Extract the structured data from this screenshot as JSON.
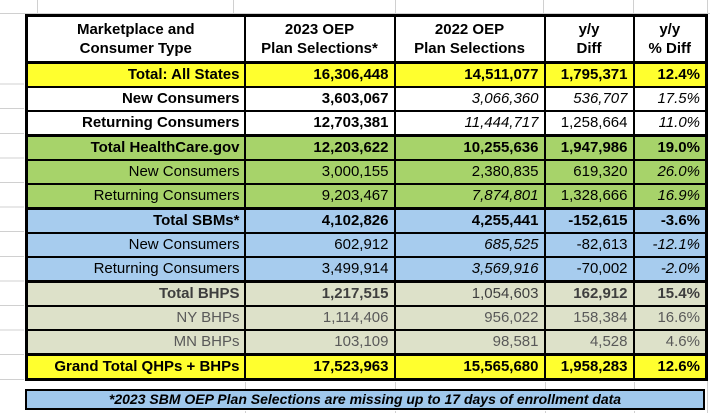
{
  "colors": {
    "section-yellow": "#FFFF2E",
    "section-green": "#A7D36A",
    "section-blue": "#A7CCEE",
    "section-olive": "#DDE1C9",
    "footnote-blue": "#A0C8EC",
    "table-border": "#000000",
    "gridline": "#D0D0D0",
    "text-gray": "#595959",
    "text-gray-dark": "#3E3E3E"
  },
  "table": {
    "columns": [
      {
        "line1": "Marketplace and",
        "line2": "Consumer Type"
      },
      {
        "line1": "2023 OEP",
        "line2": "Plan Selections*"
      },
      {
        "line1": "2022 OEP",
        "line2": "Plan Selections"
      },
      {
        "line1": "y/y",
        "line2": "Diff"
      },
      {
        "line1": "y/y",
        "line2": "% Diff"
      }
    ],
    "rows": [
      {
        "label": "Total: All States",
        "section": "yellow",
        "section_start": false,
        "label_bold": true,
        "values": [
          {
            "text": "16,306,448",
            "bold": true
          },
          {
            "text": "14,511,077",
            "bold": true
          },
          {
            "text": "1,795,371",
            "bold": true
          },
          {
            "text": "12.4%",
            "bold": true
          }
        ]
      },
      {
        "label": "New Consumers",
        "section": "white",
        "label_bold": true,
        "values": [
          {
            "text": "3,603,067",
            "bold": true
          },
          {
            "text": "3,066,360",
            "italic": true
          },
          {
            "text": "536,707",
            "italic": true
          },
          {
            "text": "17.5%",
            "italic": true
          }
        ]
      },
      {
        "label": "Returning Consumers",
        "section": "white",
        "label_bold": true,
        "values": [
          {
            "text": "12,703,381",
            "bold": true
          },
          {
            "text": "11,444,717",
            "italic": true
          },
          {
            "text": "1,258,664"
          },
          {
            "text": "11.0%",
            "italic": true
          }
        ]
      },
      {
        "label": "Total HealthCare.gov",
        "section": "green",
        "section_start": true,
        "label_bold": true,
        "values": [
          {
            "text": "12,203,622",
            "bold": true
          },
          {
            "text": "10,255,636",
            "bold": true
          },
          {
            "text": "1,947,986",
            "bold": true
          },
          {
            "text": "19.0%",
            "bold": true
          }
        ]
      },
      {
        "label": "New Consumers",
        "section": "green",
        "values": [
          {
            "text": "3,000,155"
          },
          {
            "text": "2,380,835"
          },
          {
            "text": "619,320"
          },
          {
            "text": "26.0%",
            "italic": true
          }
        ]
      },
      {
        "label": "Returning Consumers",
        "section": "green",
        "values": [
          {
            "text": "9,203,467"
          },
          {
            "text": "7,874,801",
            "italic": true
          },
          {
            "text": "1,328,666"
          },
          {
            "text": "16.9%",
            "italic": true
          }
        ]
      },
      {
        "label": "Total SBMs*",
        "section": "blue",
        "section_start": true,
        "label_bold": true,
        "values": [
          {
            "text": "4,102,826",
            "bold": true
          },
          {
            "text": "4,255,441",
            "bold": true
          },
          {
            "text": "-152,615",
            "bold": true
          },
          {
            "text": "-3.6%",
            "bold": true
          }
        ]
      },
      {
        "label": "New Consumers",
        "section": "blue",
        "values": [
          {
            "text": "602,912"
          },
          {
            "text": "685,525",
            "italic": true
          },
          {
            "text": "-82,613"
          },
          {
            "text": "-12.1%",
            "italic": true
          }
        ]
      },
      {
        "label": "Returning Consumers",
        "section": "blue",
        "values": [
          {
            "text": "3,499,914"
          },
          {
            "text": "3,569,916",
            "italic": true
          },
          {
            "text": "-70,002"
          },
          {
            "text": "-2.0%",
            "italic": true
          }
        ]
      },
      {
        "label": "Total BHPS",
        "section": "olive",
        "section_start": true,
        "label_bold": true,
        "tone": "gray-dark",
        "values": [
          {
            "text": "1,217,515",
            "bold": true
          },
          {
            "text": "1,054,603"
          },
          {
            "text": "162,912",
            "bold": true
          },
          {
            "text": "15.4%",
            "bold": true
          }
        ]
      },
      {
        "label": "NY BHPs",
        "section": "olive",
        "tone": "gray",
        "values": [
          {
            "text": "1,114,406"
          },
          {
            "text": "956,022"
          },
          {
            "text": "158,384"
          },
          {
            "text": "16.6%"
          }
        ]
      },
      {
        "label": "MN BHPs",
        "section": "olive",
        "tone": "gray",
        "values": [
          {
            "text": "103,109"
          },
          {
            "text": "98,581"
          },
          {
            "text": "4,528"
          },
          {
            "text": "4.6%"
          }
        ]
      },
      {
        "label": "Grand Total QHPs + BHPs",
        "section": "yellow",
        "section_start": true,
        "label_bold": true,
        "values": [
          {
            "text": "17,523,963",
            "bold": true
          },
          {
            "text": "15,565,680",
            "bold": true
          },
          {
            "text": "1,958,283",
            "bold": true
          },
          {
            "text": "12.6%",
            "bold": true
          }
        ]
      }
    ]
  },
  "footnote": {
    "text": "*2023 SBM OEP Plan Selections are missing up to 17 days of enrollment data"
  },
  "chart_data": {
    "type": "table",
    "title": "",
    "columns": [
      "Marketplace and Consumer Type",
      "2023 OEP Plan Selections*",
      "2022 OEP Plan Selections",
      "y/y Diff",
      "y/y % Diff"
    ],
    "rows": [
      [
        "Total: All States",
        "16,306,448",
        "14,511,077",
        "1,795,371",
        "12.4%"
      ],
      [
        "New Consumers",
        "3,603,067",
        "3,066,360",
        "536,707",
        "17.5%"
      ],
      [
        "Returning Consumers",
        "12,703,381",
        "11,444,717",
        "1,258,664",
        "11.0%"
      ],
      [
        "Total HealthCare.gov",
        "12,203,622",
        "10,255,636",
        "1,947,986",
        "19.0%"
      ],
      [
        "New Consumers",
        "3,000,155",
        "2,380,835",
        "619,320",
        "26.0%"
      ],
      [
        "Returning Consumers",
        "9,203,467",
        "7,874,801",
        "1,328,666",
        "16.9%"
      ],
      [
        "Total SBMs*",
        "4,102,826",
        "4,255,441",
        "-152,615",
        "-3.6%"
      ],
      [
        "New Consumers",
        "602,912",
        "685,525",
        "-82,613",
        "-12.1%"
      ],
      [
        "Returning Consumers",
        "3,499,914",
        "3,569,916",
        "-70,002",
        "-2.0%"
      ],
      [
        "Total BHPS",
        "1,217,515",
        "1,054,603",
        "162,912",
        "15.4%"
      ],
      [
        "NY BHPs",
        "1,114,406",
        "956,022",
        "158,384",
        "16.6%"
      ],
      [
        "MN BHPs",
        "103,109",
        "98,581",
        "4,528",
        "4.6%"
      ],
      [
        "Grand Total QHPs + BHPs",
        "17,523,963",
        "15,565,680",
        "1,958,283",
        "12.6%"
      ]
    ],
    "footnote": "*2023 SBM OEP Plan Selections are missing up to 17 days of enrollment data",
    "layout": {
      "grid": "spreadsheet",
      "header_rows": 1,
      "value_alignment": "right"
    }
  }
}
